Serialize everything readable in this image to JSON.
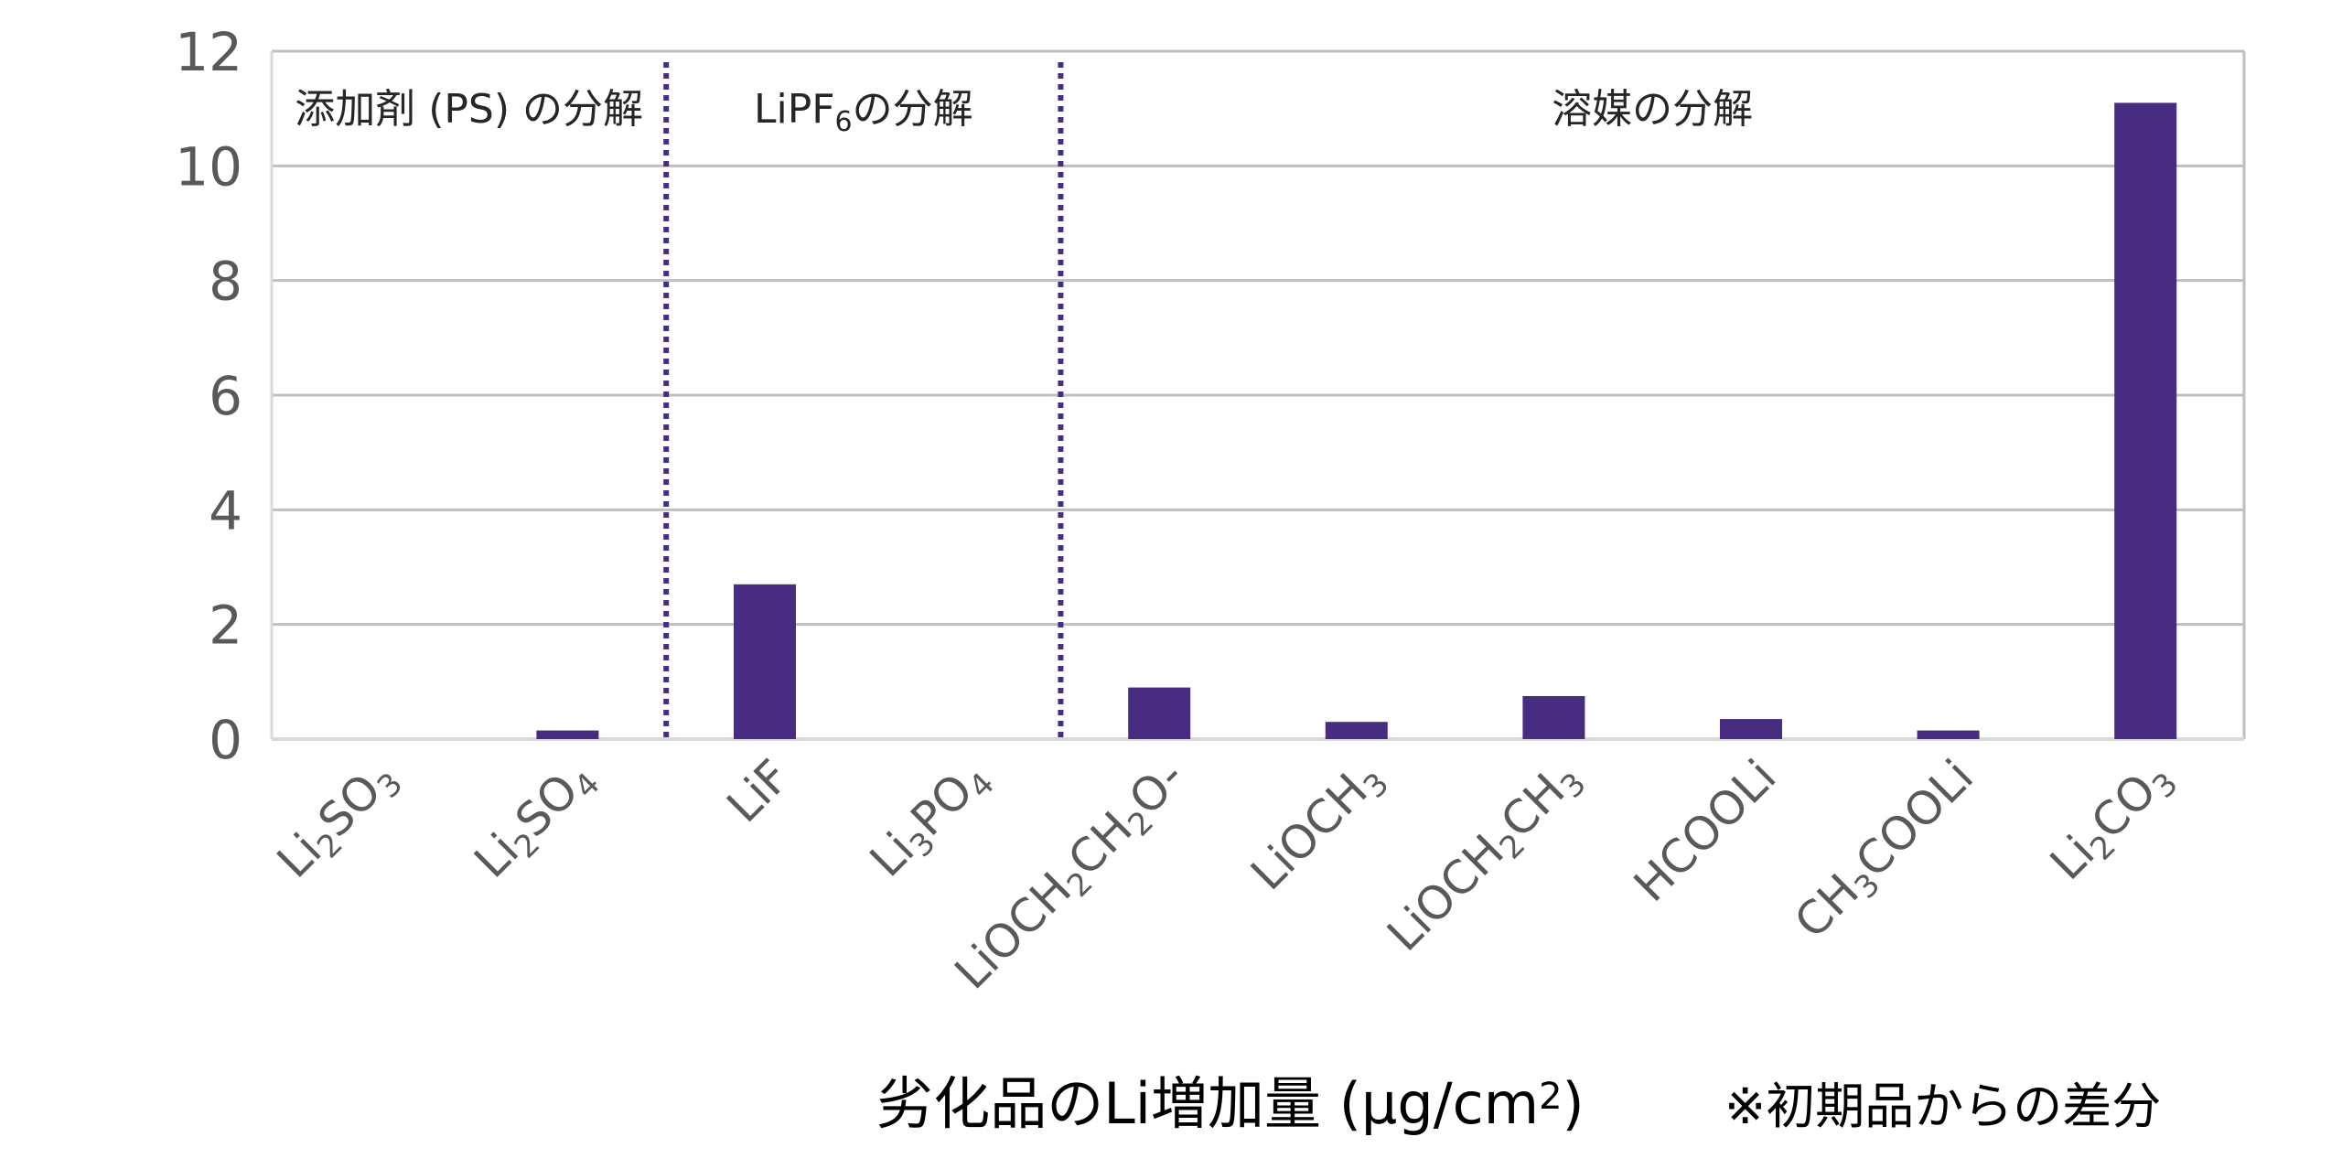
{
  "chart_data": {
    "type": "bar",
    "categories": [
      "Li2SO3",
      "Li2SO4",
      "LiF",
      "Li3PO4",
      "LiOCH2CH2O-",
      "LiOCH3",
      "LiOCH2CH3",
      "HCOOLi",
      "CH3COOLi",
      "Li2CO3"
    ],
    "category_labels": [
      [
        {
          "t": "Li"
        },
        {
          "t": "2",
          "sub": true
        },
        {
          "t": "SO"
        },
        {
          "t": "3",
          "sub": true
        }
      ],
      [
        {
          "t": "Li"
        },
        {
          "t": "2",
          "sub": true
        },
        {
          "t": "SO"
        },
        {
          "t": "4",
          "sub": true
        }
      ],
      [
        {
          "t": "LiF"
        }
      ],
      [
        {
          "t": "Li"
        },
        {
          "t": "3",
          "sub": true
        },
        {
          "t": "PO"
        },
        {
          "t": "4",
          "sub": true
        }
      ],
      [
        {
          "t": "LiOCH"
        },
        {
          "t": "2",
          "sub": true
        },
        {
          "t": "CH"
        },
        {
          "t": "2",
          "sub": true
        },
        {
          "t": "O-"
        }
      ],
      [
        {
          "t": "LiOCH"
        },
        {
          "t": "3",
          "sub": true
        }
      ],
      [
        {
          "t": "LiOCH"
        },
        {
          "t": "2",
          "sub": true
        },
        {
          "t": "CH"
        },
        {
          "t": "3",
          "sub": true
        }
      ],
      [
        {
          "t": "HCOOLi"
        }
      ],
      [
        {
          "t": "CH"
        },
        {
          "t": "3",
          "sub": true
        },
        {
          "t": "COOLi"
        }
      ],
      [
        {
          "t": "Li"
        },
        {
          "t": "2",
          "sub": true
        },
        {
          "t": "CO"
        },
        {
          "t": "3",
          "sub": true
        }
      ]
    ],
    "values": [
      0,
      0.15,
      2.7,
      0,
      0.9,
      0.3,
      0.75,
      0.35,
      0.15,
      11.1
    ],
    "ylim": [
      0,
      12
    ],
    "yticks": [
      0,
      2,
      4,
      6,
      8,
      10,
      12
    ],
    "grid": true,
    "bar_color": "#472C81",
    "divider_color": "#472C81",
    "regions": [
      {
        "label": [
          {
            "t": "添加剤 (PS) の分解"
          }
        ],
        "from": 0,
        "to": 1
      },
      {
        "label": [
          {
            "t": "LiPF"
          },
          {
            "t": "6",
            "sub": true
          },
          {
            "t": "の分解"
          }
        ],
        "from": 2,
        "to": 3
      },
      {
        "label": [
          {
            "t": "溶媒の分解"
          }
        ],
        "from": 4,
        "to": 9
      }
    ],
    "xlabel": [
      {
        "t": "劣化品のLi増加量 (µg/cm"
      },
      {
        "t": "2",
        "sup": true
      },
      {
        "t": ")"
      }
    ],
    "note": "※初期品からの差分"
  }
}
